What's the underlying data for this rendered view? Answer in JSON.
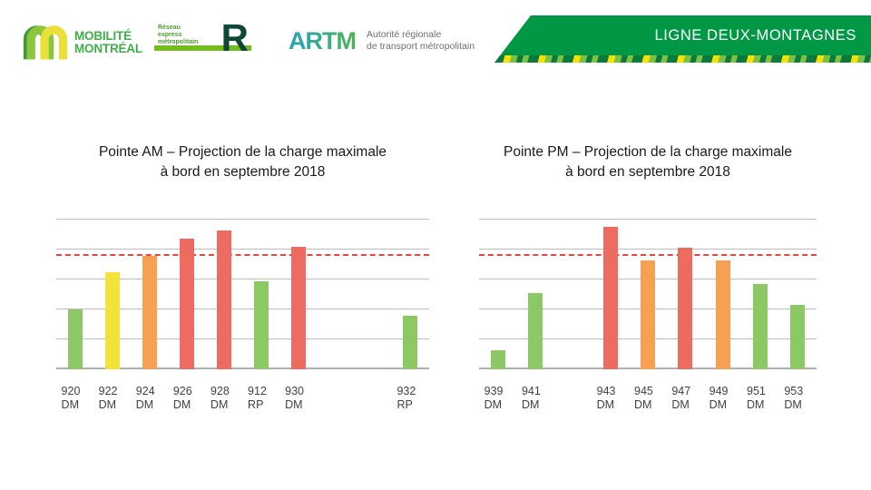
{
  "header": {
    "mobilite_logo": {
      "line1": "MOBILITÉ",
      "line2": "MONTRÉAL",
      "text_color": "#3FAE49",
      "arch_dark_green": "#3F9C35",
      "arch_light_green": "#8CC63F",
      "arch_yellow": "#EBDF3A"
    },
    "rem_logo": {
      "tagline_line1": "Réseau",
      "tagline_line2": "express",
      "tagline_line3": "métropolitain",
      "letter": "R",
      "tagline_color": "#4C9C2E",
      "letter_color": "#0E4638",
      "bar_color": "#76BC21"
    },
    "artm_logo": {
      "acronym": "ARTM",
      "desc_line1": "Autorité régionale",
      "desc_line2": "de transport métropolitain",
      "desc_color": "#6D6E71"
    },
    "banner": {
      "label": "LIGNE DEUX-MONTAGNES",
      "background": "#009845",
      "text_color": "#FFFFFF"
    }
  },
  "colors": {
    "green": "#8CC863",
    "yellow": "#F2E23C",
    "orange": "#F7A054",
    "red": "#ED6B60",
    "gridline": "#BDBDBD",
    "capacity_line": "#E8463C",
    "label_text": "#414141",
    "title_text": "#1A1A1A"
  },
  "chart_data": [
    {
      "type": "bar",
      "name": "pointe-am",
      "title_line1": "Pointe AM – Projection de la charge maximale",
      "title_line2": "à bord en septembre 2018",
      "xlabel": "",
      "ylabel": "",
      "y_axis_tick_labels": false,
      "ylim": [
        0,
        100
      ],
      "gridline_interval": 20,
      "grid": true,
      "reference_line": {
        "value": 76,
        "style": "dashed",
        "color": "#E8463C"
      },
      "slots": 10,
      "bars": [
        {
          "category": "920 DM",
          "label_line1": "920",
          "label_line2": "DM",
          "slot": 0,
          "value": 40,
          "color": "green"
        },
        {
          "category": "922 DM",
          "label_line1": "922",
          "label_line2": "DM",
          "slot": 1,
          "value": 65,
          "color": "yellow"
        },
        {
          "category": "924 DM",
          "label_line1": "924",
          "label_line2": "DM",
          "slot": 2,
          "value": 76,
          "color": "orange"
        },
        {
          "category": "926 DM",
          "label_line1": "926",
          "label_line2": "DM",
          "slot": 3,
          "value": 87,
          "color": "red"
        },
        {
          "category": "928 DM",
          "label_line1": "928",
          "label_line2": "DM",
          "slot": 4,
          "value": 93,
          "color": "red"
        },
        {
          "category": "912 RP",
          "label_line1": "912",
          "label_line2": "RP",
          "slot": 5,
          "value": 59,
          "color": "green"
        },
        {
          "category": "930 DM",
          "label_line1": "930",
          "label_line2": "DM",
          "slot": 6,
          "value": 82,
          "color": "red"
        },
        {
          "category": "932 RP",
          "label_line1": "932",
          "label_line2": "RP",
          "slot": 9,
          "value": 36,
          "color": "green"
        }
      ]
    },
    {
      "type": "bar",
      "name": "pointe-pm",
      "title_line1": "Pointe PM – Projection de la charge maximale",
      "title_line2": "à bord en septembre 2018",
      "xlabel": "",
      "ylabel": "",
      "y_axis_tick_labels": false,
      "ylim": [
        0,
        100
      ],
      "gridline_interval": 20,
      "grid": true,
      "reference_line": {
        "value": 76,
        "style": "dashed",
        "color": "#E8463C"
      },
      "slots": 9,
      "bars": [
        {
          "category": "939 DM",
          "label_line1": "939",
          "label_line2": "DM",
          "slot": 0,
          "value": 13,
          "color": "green"
        },
        {
          "category": "941 DM",
          "label_line1": "941",
          "label_line2": "DM",
          "slot": 1,
          "value": 51,
          "color": "green"
        },
        {
          "category": "943 DM",
          "label_line1": "943",
          "label_line2": "DM",
          "slot": 3,
          "value": 95,
          "color": "red"
        },
        {
          "category": "945 DM",
          "label_line1": "945",
          "label_line2": "DM",
          "slot": 4,
          "value": 73,
          "color": "orange"
        },
        {
          "category": "947 DM",
          "label_line1": "947",
          "label_line2": "DM",
          "slot": 5,
          "value": 81,
          "color": "red"
        },
        {
          "category": "949 DM",
          "label_line1": "949",
          "label_line2": "DM",
          "slot": 6,
          "value": 73,
          "color": "orange"
        },
        {
          "category": "951 DM",
          "label_line1": "951",
          "label_line2": "DM",
          "slot": 7,
          "value": 57,
          "color": "green"
        },
        {
          "category": "953 DM",
          "label_line1": "953",
          "label_line2": "DM",
          "slot": 8,
          "value": 43,
          "color": "green"
        }
      ]
    }
  ]
}
